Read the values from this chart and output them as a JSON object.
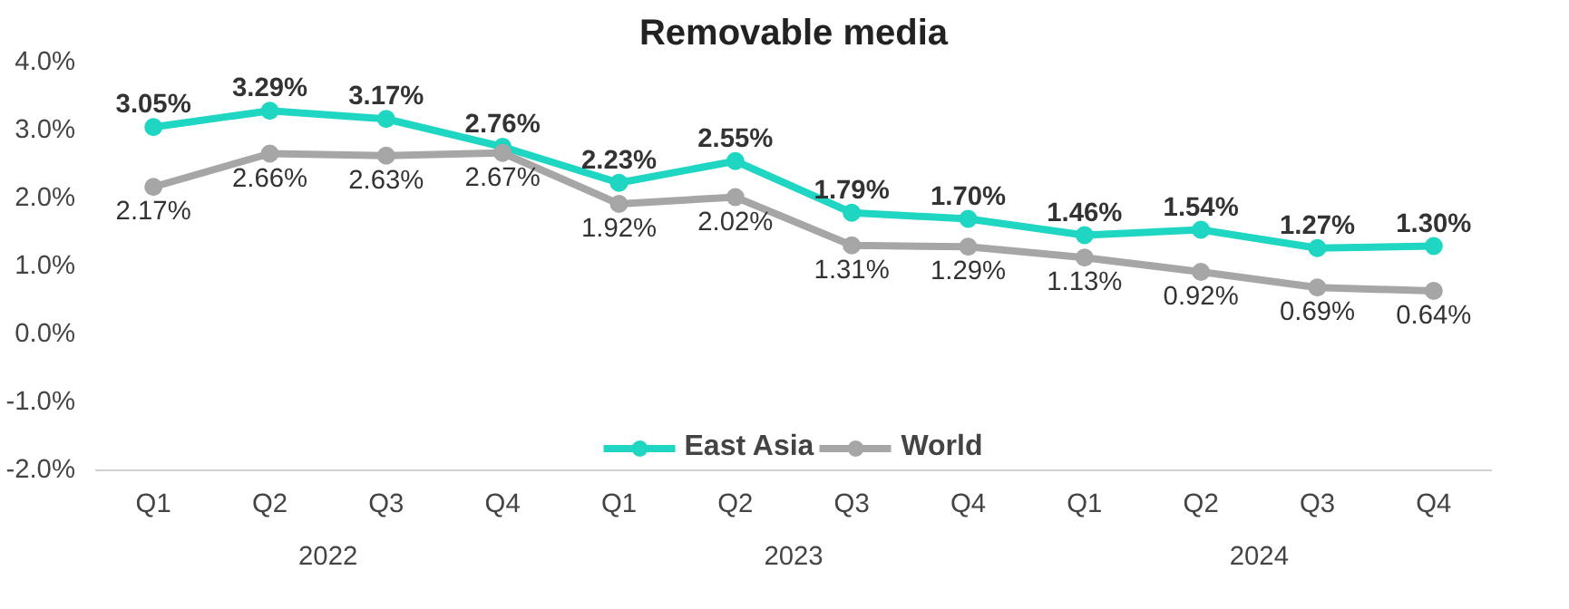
{
  "chart_data": {
    "type": "line",
    "title": "Removable media",
    "categories": [
      "Q1",
      "Q2",
      "Q3",
      "Q4",
      "Q1",
      "Q2",
      "Q3",
      "Q4",
      "Q1",
      "Q2",
      "Q3",
      "Q4"
    ],
    "annotations": [
      "2022",
      "2023",
      "2024"
    ],
    "series": [
      {
        "name": "East Asia",
        "color": "#1fd6c2",
        "values": [
          3.05,
          3.29,
          3.17,
          2.76,
          2.23,
          2.55,
          1.79,
          1.7,
          1.46,
          1.54,
          1.27,
          1.3
        ],
        "value_labels": [
          "3.05%",
          "3.29%",
          "3.17%",
          "2.76%",
          "2.23%",
          "2.55%",
          "1.79%",
          "1.70%",
          "1.46%",
          "1.54%",
          "1.27%",
          "1.30%"
        ]
      },
      {
        "name": "World",
        "color": "#a6a6a6",
        "values": [
          2.17,
          2.66,
          2.63,
          2.67,
          1.92,
          2.02,
          1.31,
          1.29,
          1.13,
          0.92,
          0.69,
          0.64
        ],
        "value_labels": [
          "2.17%",
          "2.66%",
          "2.63%",
          "2.67%",
          "1.92%",
          "2.02%",
          "1.31%",
          "1.29%",
          "1.13%",
          "0.92%",
          "0.69%",
          "0.64%"
        ]
      }
    ],
    "ylim": [
      -2,
      4
    ],
    "yticks": [
      {
        "value": -2,
        "label": "-2.0%"
      },
      {
        "value": -1,
        "label": "-1.0%"
      },
      {
        "value": 0,
        "label": "0.0%"
      },
      {
        "value": 1,
        "label": "1.0%"
      },
      {
        "value": 2,
        "label": "2.0%"
      },
      {
        "value": 3,
        "label": "3.0%"
      },
      {
        "value": 4,
        "label": "4.0%"
      }
    ],
    "grid": false,
    "legend": "bottom",
    "marker": "circle",
    "line_style": "solid"
  }
}
